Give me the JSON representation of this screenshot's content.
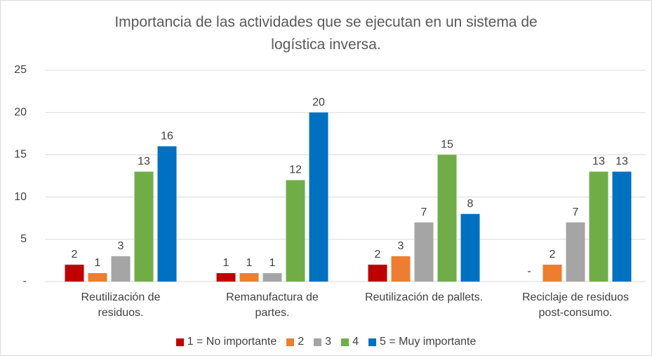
{
  "chart_data": {
    "type": "bar",
    "title": "Importancia de las actividades que se ejecutan en un sistema de\nlogística inversa.",
    "categories": [
      "Reutilización de\nresiduos.",
      "Remanufactura de\npartes.",
      "Reutilización de pallets.",
      "Reciclaje de residuos\npost-consumo."
    ],
    "series": [
      {
        "name": "1 = No importante",
        "color": "#c00000",
        "values": [
          2,
          1,
          2,
          0
        ],
        "value_labels": [
          "2",
          "1",
          "2",
          "-"
        ]
      },
      {
        "name": "2",
        "color": "#ed7d31",
        "values": [
          1,
          1,
          3,
          2
        ]
      },
      {
        "name": "3",
        "color": "#a5a5a5",
        "values": [
          3,
          1,
          7,
          7
        ]
      },
      {
        "name": "4",
        "color": "#70ad47",
        "values": [
          13,
          12,
          15,
          13
        ]
      },
      {
        "name": "5 = Muy importante",
        "color": "#0070c0",
        "values": [
          16,
          20,
          8,
          13
        ]
      }
    ],
    "ylim": [
      0,
      25
    ],
    "yticks": [
      {
        "value": 0,
        "label": "-"
      },
      5,
      10,
      15,
      20,
      25
    ],
    "grid": true,
    "legend": "bottom"
  }
}
